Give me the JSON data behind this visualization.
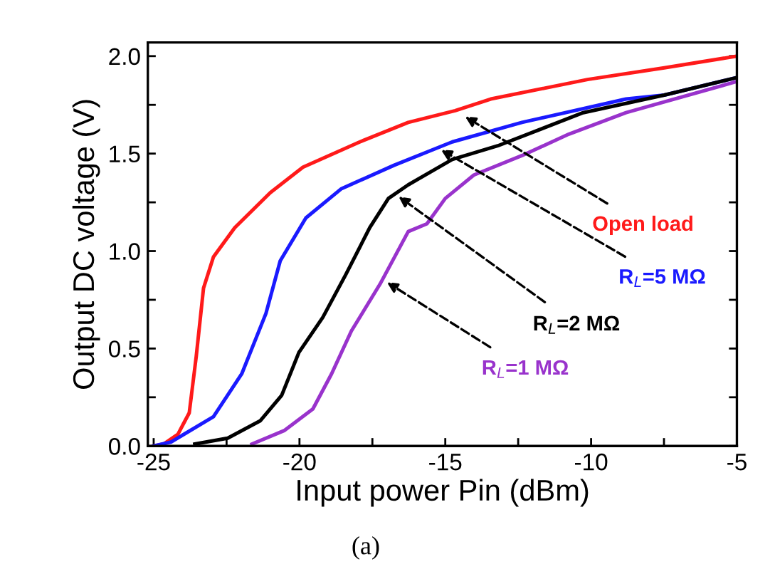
{
  "chart_data": {
    "type": "line",
    "xlabel": "Input power Pin (dBm)",
    "ylabel": "Output DC voltage (V)",
    "xlim": [
      -25.2,
      -5
    ],
    "ylim": [
      0,
      2.07
    ],
    "xticks": [
      -25,
      {
        "value": -22.5,
        "label": null
      },
      -20,
      {
        "value": -17.5,
        "label": null
      },
      -15,
      {
        "value": -12.5,
        "label": null
      },
      -10,
      {
        "value": -7.5,
        "label": null
      },
      -5
    ],
    "yticks": [
      "0.0",
      {
        "value": 0.25,
        "label": null
      },
      {
        "value": 0.5,
        "label": "0.5"
      },
      {
        "value": 0.75,
        "label": null
      },
      {
        "value": 1.0,
        "label": "1.0"
      },
      {
        "value": 1.25,
        "label": null
      },
      {
        "value": 1.5,
        "label": "1.5"
      },
      {
        "value": 1.75,
        "label": null
      },
      {
        "value": 2.0,
        "label": "2.0"
      }
    ],
    "grid": false,
    "line_style": "solid",
    "marker": "none",
    "series": [
      {
        "color": "#ff1a1a",
        "x": [
          -25,
          -24.66,
          -24.17,
          -23.78,
          -23.54,
          -23.29,
          -22.95,
          -22.22,
          -21.0,
          -19.88,
          -17.93,
          -16.27,
          -14.66,
          -13.44,
          -10.12,
          -7.49,
          -5.0
        ],
        "values": [
          0,
          0.01,
          0.06,
          0.17,
          0.46,
          0.81,
          0.97,
          1.12,
          1.3,
          1.43,
          1.56,
          1.66,
          1.72,
          1.78,
          1.88,
          1.94,
          2.0
        ]
      },
      {
        "color": "#1a1aff",
        "x": [
          -25,
          -24.41,
          -22.95,
          -21.98,
          -21.15,
          -20.66,
          -19.78,
          -18.56,
          -16.76,
          -14.76,
          -12.37,
          -8.8,
          -7.49,
          -5.0
        ],
        "values": [
          0,
          0.02,
          0.15,
          0.37,
          0.68,
          0.95,
          1.17,
          1.32,
          1.44,
          1.56,
          1.66,
          1.78,
          1.8,
          1.89
        ]
      },
      {
        "color": "#000000",
        "x": [
          -23.59,
          -22.46,
          -21.34,
          -20.61,
          -20.02,
          -19.2,
          -18.41,
          -17.59,
          -16.95,
          -16.27,
          -14.76,
          -13.2,
          -10.27,
          -7.49,
          -5.0
        ],
        "values": [
          0.01,
          0.04,
          0.13,
          0.26,
          0.48,
          0.66,
          0.88,
          1.12,
          1.27,
          1.34,
          1.47,
          1.54,
          1.71,
          1.8,
          1.89
        ]
      },
      {
        "color": "#9933cc",
        "x": [
          -21.63,
          -20.51,
          -19.54,
          -18.9,
          -18.22,
          -17.24,
          -16.27,
          -15.63,
          -15.0,
          -14.02,
          -12.37,
          -10.76,
          -8.8,
          -5.0
        ],
        "values": [
          0.01,
          0.08,
          0.19,
          0.37,
          0.59,
          0.83,
          1.1,
          1.14,
          1.27,
          1.39,
          1.49,
          1.6,
          1.71,
          1.87
        ]
      }
    ],
    "annotations": [
      {
        "text": "Open load",
        "x": -14.32,
        "y": 1.69
      },
      {
        "text": "R$_{L}$=5 MΩ",
        "x": -15.15,
        "y": 1.52
      },
      {
        "text": "R$_{L}$=2 MΩ",
        "x": -16.6,
        "y": 1.28
      },
      {
        "text": "R$_{L}$=1 MΩ",
        "x": -17.0,
        "y": 0.84
      },
      "(a)"
    ]
  }
}
